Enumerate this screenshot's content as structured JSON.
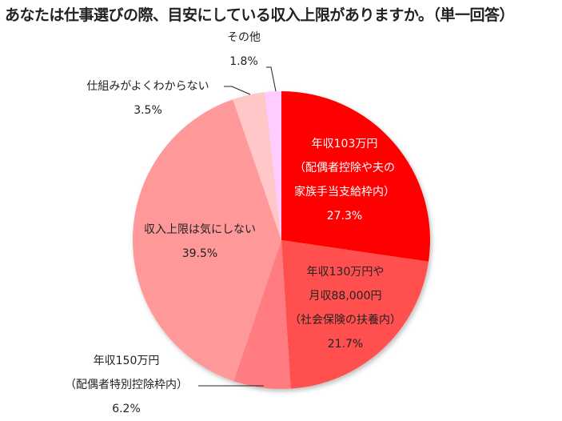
{
  "chart_data": {
    "type": "pie",
    "title": "あなたは仕事選びの際、目安にしている収入上限がありますか。（単一回答）",
    "unit": "%",
    "start_angle_deg": 0,
    "direction": "clockwise",
    "slices": [
      {
        "label": "年収103万円（配偶者控除や夫の家族手当支給枠内）",
        "value": 27.3,
        "color": "#FF0000"
      },
      {
        "label": "年収130万円や月収88,000円（社会保険の扶養内）",
        "value": 21.7,
        "color": "#FF5050"
      },
      {
        "label": "年収150万円（配偶者特別控除枠内）",
        "value": 6.2,
        "color": "#FF7C80"
      },
      {
        "label": "収入上限は気にしない",
        "value": 39.5,
        "color": "#FF9999"
      },
      {
        "label": "仕組みがよくわからない",
        "value": 3.5,
        "color": "#FFC7C7"
      },
      {
        "label": "その他",
        "value": 1.8,
        "color": "#FFCCFF"
      }
    ],
    "legend": "none (data labels)"
  },
  "title": "あなたは仕事選びの際、目安にしている収入上限がありますか。（単一回答）",
  "labels": {
    "s103": {
      "l1": "年収103万円",
      "l2": "（配偶者控除や夫の",
      "l3": "家族手当支給枠内）",
      "pct": "27.3%"
    },
    "s130": {
      "l1": "年収130万円や",
      "l2": "月収88,000円",
      "l3": "（社会保険の扶養内）",
      "pct": "21.7%"
    },
    "s150": {
      "l1": "年収150万円",
      "l2": "（配偶者特別控除枠内）",
      "pct": "6.2%"
    },
    "none": {
      "l1": "収入上限は気にしない",
      "pct": "39.5%"
    },
    "unk": {
      "l1": "仕組みがよくわからない",
      "pct": "3.5%"
    },
    "other": {
      "l1": "その他",
      "pct": "1.8%"
    }
  }
}
